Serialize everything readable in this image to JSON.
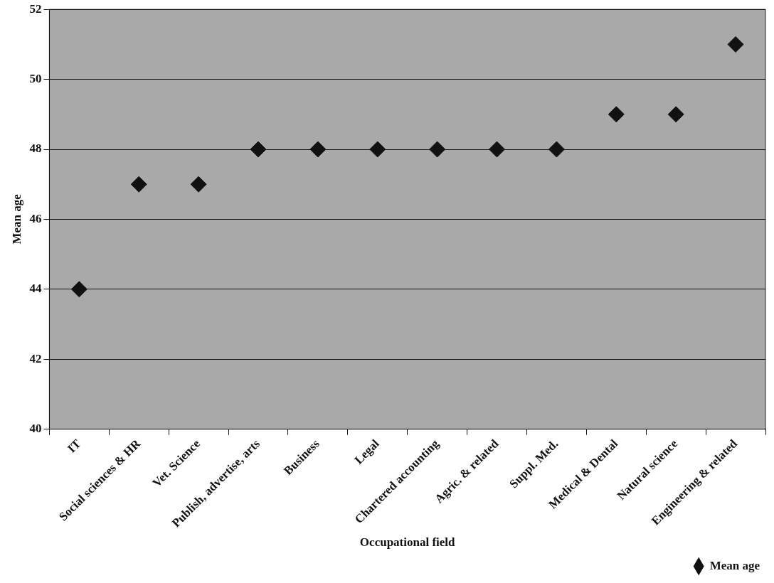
{
  "chart_data": {
    "type": "scatter",
    "xlabel": "Occupational field",
    "ylabel": "Mean age",
    "categories": [
      "IT",
      "Social sciences & HR",
      "Vet. Science",
      "Publish, advertise, arts",
      "Business",
      "Legal",
      "Chartered accounting",
      "Agric. & related",
      "Suppl. Med.",
      "Medical & Dental",
      "Natural science",
      "Engineering & related"
    ],
    "series": [
      {
        "name": "Mean age",
        "color": "#111111",
        "values": [
          44,
          47,
          47,
          48,
          48,
          48,
          48,
          48,
          48,
          49,
          49,
          51
        ]
      }
    ],
    "ylim": [
      40,
      52
    ],
    "yticks": [
      40,
      42,
      44,
      46,
      48,
      50,
      52
    ],
    "grid": "y",
    "legend": "bottom right",
    "marker": "diamond"
  }
}
